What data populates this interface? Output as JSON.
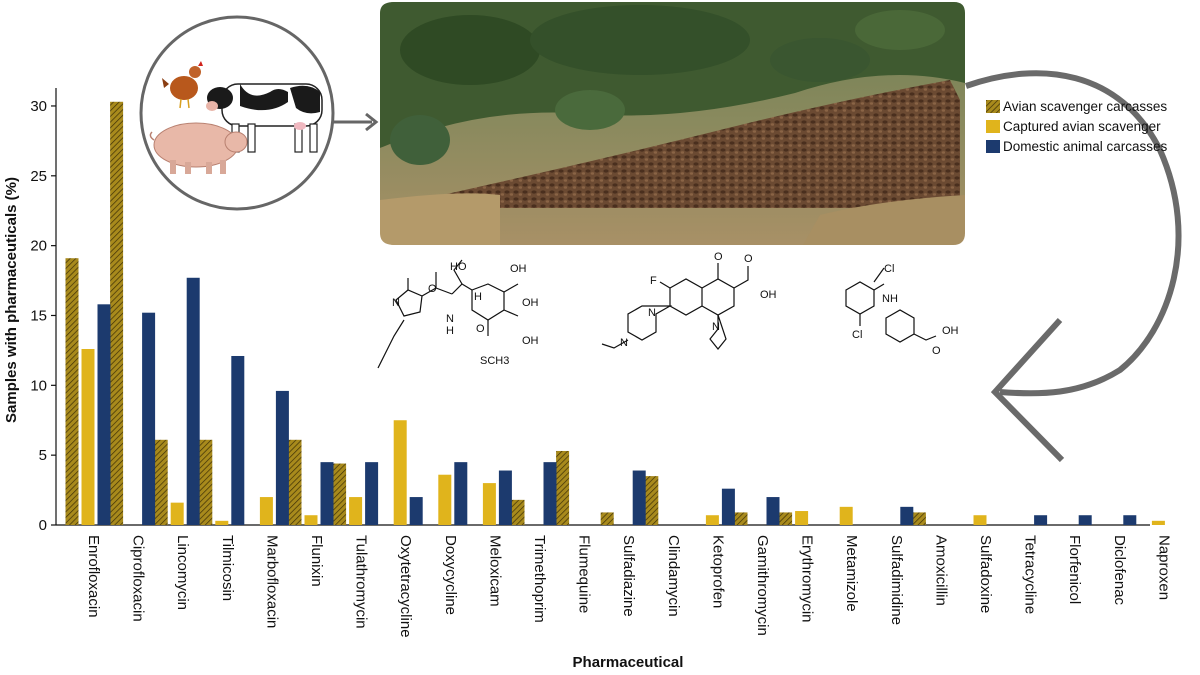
{
  "chart_data": {
    "type": "bar",
    "xlabel": "Pharmaceutical",
    "ylabel": "Samples with pharmaceuticals (%)",
    "ylim": [
      0,
      31
    ],
    "yticks": [
      0,
      5,
      10,
      15,
      20,
      25,
      30
    ],
    "grid": false,
    "legend_position": "right",
    "categories": [
      "Enrofloxacin",
      "Ciprofloxacin",
      "Lincomycin",
      "Tilmicosin",
      "Marbofloxacin",
      "Flunixin",
      "Tulathromycin",
      "Oxytetracycline",
      "Doxycycline",
      "Meloxicam",
      "Trimethoprim",
      "Flumequine",
      "Sulfadiazine",
      "Clindamycin",
      "Ketoprofen",
      "Gamithromycin",
      "Erythromycin",
      "Metamizole",
      "Sulfadimidine",
      "Amoxicillin",
      "Sulfadoxine",
      "Tetracycline",
      "Florfenicol",
      "Diclofenac",
      "Naproxen"
    ],
    "series": [
      {
        "name": "Avian scavenger carcasses",
        "color": "#a88a1c",
        "pattern": "hatched",
        "values": [
          19.1,
          30.3,
          6.1,
          6.1,
          0,
          6.1,
          4.4,
          0,
          0,
          0,
          1.8,
          5.3,
          0.9,
          3.5,
          0,
          0.9,
          0.9,
          0,
          0,
          0.9,
          0,
          0,
          0,
          0,
          0
        ]
      },
      {
        "name": "Captured avian scavenger",
        "color": "#e0b41c",
        "values": [
          12.6,
          0,
          1.6,
          0.3,
          2.0,
          0.7,
          2.0,
          7.5,
          3.6,
          3.0,
          0,
          0,
          0,
          0,
          0.7,
          0,
          1.0,
          1.3,
          0,
          0,
          0.7,
          0,
          0,
          0,
          0.3
        ]
      },
      {
        "name": "Domestic animal carcasses",
        "color": "#1c3a6e",
        "values": [
          15.8,
          15.2,
          17.7,
          12.1,
          9.6,
          4.5,
          4.5,
          2.0,
          4.5,
          3.9,
          4.5,
          0,
          3.9,
          0,
          2.6,
          2.0,
          0,
          0,
          1.3,
          0,
          0,
          0.7,
          0.7,
          0.7,
          0
        ]
      }
    ]
  },
  "illustrations": {
    "animals_circle": {
      "icons": [
        "chicken-icon",
        "cow-icon",
        "pig-icon"
      ]
    },
    "photo": {
      "subject": "vultures-feeding-photo"
    },
    "molecules": [
      {
        "labels": [
          "HO",
          "N",
          "O",
          "N",
          "H",
          "OH",
          "OH",
          "O",
          "OH",
          "SCH3",
          "H"
        ]
      },
      {
        "labels": [
          "F",
          "O",
          "O",
          "OH",
          "N",
          "N",
          "N"
        ]
      },
      {
        "labels": [
          "Cl",
          "NH",
          "Cl",
          "O",
          "OH"
        ]
      }
    ]
  }
}
